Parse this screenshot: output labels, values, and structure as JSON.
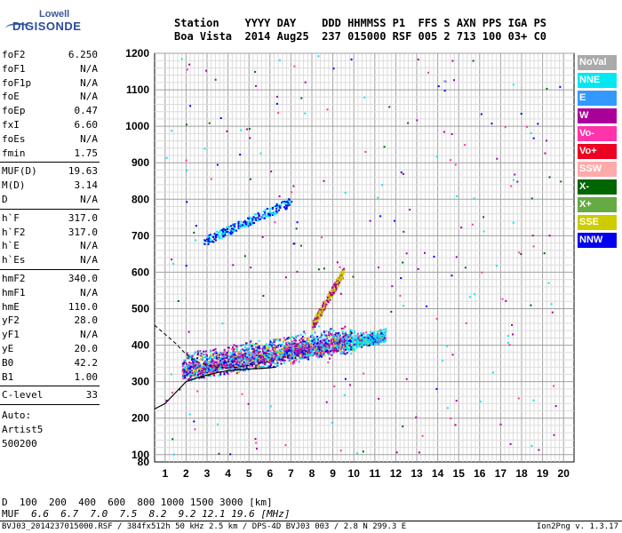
{
  "logo": {
    "line1": "Lowell",
    "line2": "DIGISONDE"
  },
  "header": {
    "line1": "Station    YYYY DAY    DDD HHMMSS P1  FFS S AXN PPS IGA PS",
    "line2": "Boa Vista  2014 Aug25  237 015000 RSF 005 2 713 100 03+ C0"
  },
  "params": [
    {
      "label": "foF2",
      "value": "6.250"
    },
    {
      "label": "foF1",
      "value": "N/A"
    },
    {
      "label": "foF1p",
      "value": "N/A"
    },
    {
      "label": "foE",
      "value": "N/A"
    },
    {
      "label": "foEp",
      "value": "0.47"
    },
    {
      "label": "fxI",
      "value": "6.60"
    },
    {
      "label": "foEs",
      "value": "N/A"
    },
    {
      "label": "fmin",
      "value": "1.75"
    },
    {
      "label": "MUF(D)",
      "value": "19.63"
    },
    {
      "label": "M(D)",
      "value": "3.14"
    },
    {
      "label": "D",
      "value": "N/A"
    },
    {
      "label": "h`F",
      "value": "317.0"
    },
    {
      "label": "h`F2",
      "value": "317.0"
    },
    {
      "label": "h`E",
      "value": "N/A"
    },
    {
      "label": "h`Es",
      "value": "N/A"
    },
    {
      "label": "hmF2",
      "value": "340.0"
    },
    {
      "label": "hmF1",
      "value": "N/A"
    },
    {
      "label": "hmE",
      "value": "110.0"
    },
    {
      "label": "yF2",
      "value": "28.0"
    },
    {
      "label": "yF1",
      "value": "N/A"
    },
    {
      "label": "yE",
      "value": "20.0"
    },
    {
      "label": "B0",
      "value": "42.2"
    },
    {
      "label": "B1",
      "value": "1.00"
    },
    {
      "label": "C-level",
      "value": "33"
    }
  ],
  "auto": {
    "line1": "Auto:",
    "line2": "Artist5",
    "line3": "500200"
  },
  "dtable": {
    "d_label": "D",
    "d_values": "  100  200  400  600  800 1000 1500 3000 [km]",
    "muf_label": "MUF",
    "muf_values": "  6.6  6.7  7.0  7.5  8.2  9.2 12.1 19.6 [MHz]"
  },
  "footer": "BVJ03_2014237015000.RSF / 384fx512h 50 kHz 2.5 km / DPS-4D BVJ03 003 / 2.8 N 299.3 E",
  "version": "Ion2Png v. 1.3.17",
  "legend": [
    {
      "label": "NoVal",
      "color": "#aaaaaa"
    },
    {
      "label": "NNE",
      "color": "#00e8f0"
    },
    {
      "label": "E",
      "color": "#3399ff"
    },
    {
      "label": "W",
      "color": "#aa0099"
    },
    {
      "label": "Vo-",
      "color": "#ff33aa"
    },
    {
      "label": "Vo+",
      "color": "#ee0022"
    },
    {
      "label": "SSW",
      "color": "#ffaaaa"
    },
    {
      "label": "X-",
      "color": "#006600"
    },
    {
      "label": "X+",
      "color": "#66aa44"
    },
    {
      "label": "SSE",
      "color": "#cccc00"
    },
    {
      "label": "NNW",
      "color": "#0000ee"
    }
  ],
  "chart_data": {
    "type": "scatter",
    "xlabel": "",
    "ylabel": "",
    "xlim": [
      0.5,
      20.5
    ],
    "ylim": [
      80,
      1200
    ],
    "x_ticks": [
      1,
      2,
      3,
      4,
      5,
      6,
      7,
      8,
      9,
      10,
      11,
      12,
      13,
      14,
      15,
      16,
      17,
      18,
      19,
      20
    ],
    "y_ticks": [
      80,
      100,
      200,
      300,
      400,
      500,
      600,
      700,
      800,
      900,
      1000,
      1100,
      1200
    ],
    "grid": true,
    "traces": [
      {
        "name": "F2 o-trace (main)",
        "x_range": [
          1.8,
          11.5
        ],
        "h_start": 325,
        "h_end": 420
      },
      {
        "name": "F2 upper trace",
        "x_range": [
          2.8,
          7.0
        ],
        "h_start": 680,
        "h_end": 790
      },
      {
        "name": "Es/high spread",
        "x_range": [
          8.0,
          9.5
        ],
        "h_start": 450,
        "h_end": 600
      }
    ],
    "profile_curve": [
      [
        0.5,
        225
      ],
      [
        1.0,
        240
      ],
      [
        1.5,
        270
      ],
      [
        2.0,
        300
      ],
      [
        2.5,
        310
      ],
      [
        3.0,
        318
      ],
      [
        3.5,
        325
      ],
      [
        4.0,
        330
      ],
      [
        4.5,
        333
      ],
      [
        5.0,
        335
      ],
      [
        5.5,
        336
      ],
      [
        6.0,
        338
      ],
      [
        6.3,
        340
      ]
    ],
    "dashed_curve": [
      [
        0.5,
        455
      ],
      [
        1.0,
        430
      ],
      [
        1.5,
        405
      ],
      [
        2.0,
        375
      ],
      [
        2.5,
        355
      ],
      [
        3.0,
        345
      ],
      [
        3.5,
        340
      ],
      [
        4.0,
        338
      ],
      [
        4.5,
        340
      ],
      [
        5.0,
        345
      ],
      [
        5.5,
        350
      ],
      [
        6.0,
        355
      ]
    ]
  }
}
